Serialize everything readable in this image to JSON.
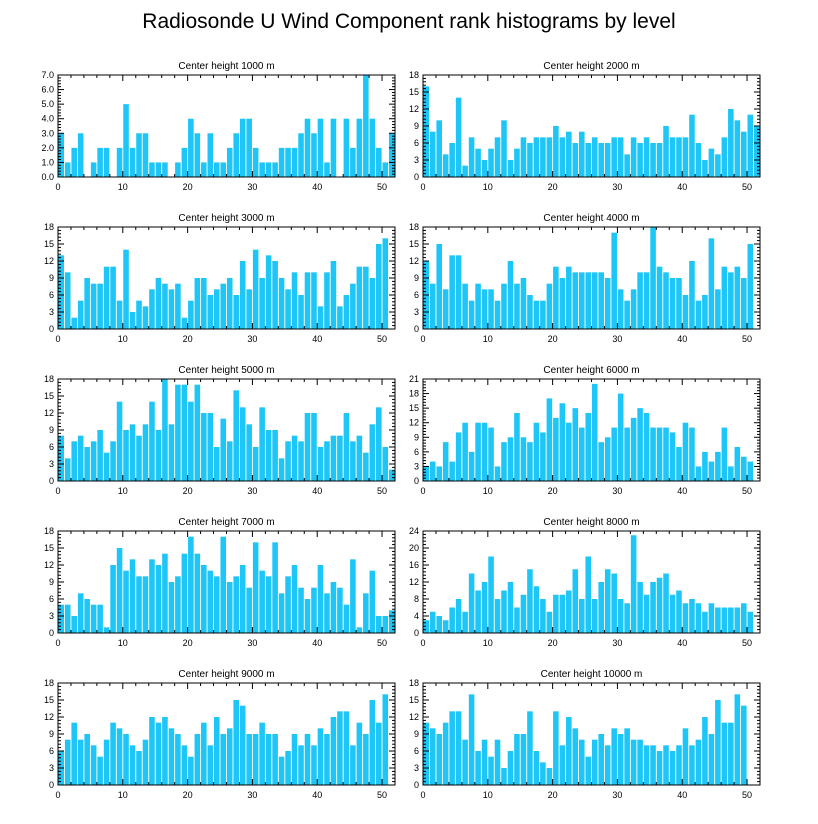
{
  "title": "Radiosonde U Wind Component rank histograms by level",
  "colors": {
    "bar": "#1ec6f7",
    "axis": "#000000",
    "background": "#ffffff"
  },
  "chart_data": [
    {
      "type": "bar",
      "title": "Center height 1000 m",
      "x": [
        0,
        1,
        2,
        3,
        4,
        5,
        6,
        7,
        8,
        9,
        10,
        11,
        12,
        13,
        14,
        15,
        16,
        17,
        18,
        19,
        20,
        21,
        22,
        23,
        24,
        25,
        26,
        27,
        28,
        29,
        30,
        31,
        32,
        33,
        34,
        35,
        36,
        37,
        38,
        39,
        40,
        41,
        42,
        43,
        44,
        45,
        46,
        47,
        48,
        49,
        50,
        51
      ],
      "values": [
        3,
        1,
        2,
        3,
        0,
        1,
        2,
        2,
        0,
        2,
        5,
        2,
        3,
        3,
        1,
        1,
        1,
        0,
        1,
        2,
        4,
        3,
        1,
        3,
        1,
        1,
        2,
        3,
        4,
        4,
        2,
        1,
        1,
        1,
        2,
        2,
        2,
        3,
        4,
        3,
        4,
        1,
        4,
        0,
        4,
        2,
        4,
        7,
        4,
        2,
        1,
        3
      ],
      "xlim": [
        0,
        52
      ],
      "ylim": [
        0,
        7
      ],
      "xticks": [
        0,
        10,
        20,
        30,
        40,
        50
      ],
      "yticks": [
        0,
        1,
        2,
        3,
        4,
        5,
        6,
        7
      ],
      "ytick_labels": [
        "0.0",
        "1.0",
        "2.0",
        "3.0",
        "4.0",
        "5.0",
        "6.0",
        "7.0"
      ]
    },
    {
      "type": "bar",
      "title": "Center height 2000 m",
      "x": [
        0,
        1,
        2,
        3,
        4,
        5,
        6,
        7,
        8,
        9,
        10,
        11,
        12,
        13,
        14,
        15,
        16,
        17,
        18,
        19,
        20,
        21,
        22,
        23,
        24,
        25,
        26,
        27,
        28,
        29,
        30,
        31,
        32,
        33,
        34,
        35,
        36,
        37,
        38,
        39,
        40,
        41,
        42,
        43,
        44,
        45,
        46,
        47,
        48,
        49,
        50,
        51
      ],
      "values": [
        16,
        8,
        10,
        4,
        6,
        14,
        2,
        7,
        5,
        3,
        5,
        7,
        10,
        3,
        5,
        7,
        6,
        7,
        7,
        7,
        9,
        7,
        8,
        6,
        8,
        6,
        7,
        6,
        6,
        7,
        7,
        4,
        7,
        6,
        7,
        6,
        6,
        9,
        7,
        7,
        7,
        11,
        6,
        3,
        5,
        4,
        7,
        12,
        10,
        8,
        11,
        9
      ],
      "xlim": [
        0,
        52
      ],
      "ylim": [
        0,
        18
      ],
      "xticks": [
        0,
        10,
        20,
        30,
        40,
        50
      ],
      "yticks": [
        0,
        3,
        6,
        9,
        12,
        15,
        18
      ],
      "ytick_labels": [
        "0",
        "3",
        "6",
        "9",
        "12",
        "15",
        "18"
      ]
    },
    {
      "type": "bar",
      "title": "Center height 3000 m",
      "x": [
        0,
        1,
        2,
        3,
        4,
        5,
        6,
        7,
        8,
        9,
        10,
        11,
        12,
        13,
        14,
        15,
        16,
        17,
        18,
        19,
        20,
        21,
        22,
        23,
        24,
        25,
        26,
        27,
        28,
        29,
        30,
        31,
        32,
        33,
        34,
        35,
        36,
        37,
        38,
        39,
        40,
        41,
        42,
        43,
        44,
        45,
        46,
        47,
        48,
        49,
        50,
        51
      ],
      "values": [
        13,
        10,
        2,
        5,
        9,
        8,
        8,
        11,
        11,
        5,
        14,
        3,
        5,
        4,
        7,
        9,
        8,
        7,
        8,
        2,
        5,
        9,
        9,
        6,
        7,
        8,
        9,
        6,
        12,
        7,
        14,
        9,
        13,
        12,
        9,
        7,
        10,
        6,
        10,
        10,
        4,
        10,
        12,
        4,
        6,
        8,
        11,
        11,
        9,
        15,
        16,
        0
      ],
      "xlim": [
        0,
        52
      ],
      "ylim": [
        0,
        18
      ],
      "xticks": [
        0,
        10,
        20,
        30,
        40,
        50
      ],
      "yticks": [
        0,
        3,
        6,
        9,
        12,
        15,
        18
      ],
      "ytick_labels": [
        "0",
        "3",
        "6",
        "9",
        "12",
        "15",
        "18"
      ]
    },
    {
      "type": "bar",
      "title": "Center height 4000 m",
      "x": [
        0,
        1,
        2,
        3,
        4,
        5,
        6,
        7,
        8,
        9,
        10,
        11,
        12,
        13,
        14,
        15,
        16,
        17,
        18,
        19,
        20,
        21,
        22,
        23,
        24,
        25,
        26,
        27,
        28,
        29,
        30,
        31,
        32,
        33,
        34,
        35,
        36,
        37,
        38,
        39,
        40,
        41,
        42,
        43,
        44,
        45,
        46,
        47,
        48,
        49,
        50,
        51
      ],
      "values": [
        12,
        8,
        15,
        7,
        13,
        13,
        8,
        5,
        8,
        7,
        7,
        5,
        8,
        12,
        8,
        9,
        6,
        5,
        5,
        8,
        11,
        9,
        11,
        10,
        10,
        10,
        10,
        10,
        9,
        17,
        7,
        5,
        7,
        10,
        10,
        18,
        11,
        10,
        9,
        9,
        6,
        12,
        5,
        6,
        16,
        7,
        11,
        10,
        11,
        9,
        15,
        0
      ],
      "xlim": [
        0,
        52
      ],
      "ylim": [
        0,
        18
      ],
      "xticks": [
        0,
        10,
        20,
        30,
        40,
        50
      ],
      "yticks": [
        0,
        3,
        6,
        9,
        12,
        15,
        18
      ],
      "ytick_labels": [
        "0",
        "3",
        "6",
        "9",
        "12",
        "15",
        "18"
      ]
    },
    {
      "type": "bar",
      "title": "Center height 5000 m",
      "x": [
        0,
        1,
        2,
        3,
        4,
        5,
        6,
        7,
        8,
        9,
        10,
        11,
        12,
        13,
        14,
        15,
        16,
        17,
        18,
        19,
        20,
        21,
        22,
        23,
        24,
        25,
        26,
        27,
        28,
        29,
        30,
        31,
        32,
        33,
        34,
        35,
        36,
        37,
        38,
        39,
        40,
        41,
        42,
        43,
        44,
        45,
        46,
        47,
        48,
        49,
        50,
        51
      ],
      "values": [
        8,
        4,
        7,
        8,
        6,
        7,
        9,
        5,
        7,
        14,
        9,
        10,
        8,
        10,
        14,
        9,
        18,
        10,
        17,
        17,
        14,
        17,
        12,
        12,
        6,
        11,
        7,
        16,
        13,
        10,
        6,
        13,
        9,
        9,
        4,
        7,
        8,
        7,
        12,
        12,
        6,
        7,
        8,
        8,
        12,
        7,
        8,
        5,
        10,
        13,
        6,
        2
      ],
      "xlim": [
        0,
        52
      ],
      "ylim": [
        0,
        18
      ],
      "xticks": [
        0,
        10,
        20,
        30,
        40,
        50
      ],
      "yticks": [
        0,
        3,
        6,
        9,
        12,
        15,
        18
      ],
      "ytick_labels": [
        "0",
        "3",
        "6",
        "9",
        "12",
        "15",
        "18"
      ]
    },
    {
      "type": "bar",
      "title": "Center height 6000 m",
      "x": [
        0,
        1,
        2,
        3,
        4,
        5,
        6,
        7,
        8,
        9,
        10,
        11,
        12,
        13,
        14,
        15,
        16,
        17,
        18,
        19,
        20,
        21,
        22,
        23,
        24,
        25,
        26,
        27,
        28,
        29,
        30,
        31,
        32,
        33,
        34,
        35,
        36,
        37,
        38,
        39,
        40,
        41,
        42,
        43,
        44,
        45,
        46,
        47,
        48,
        49,
        50,
        51
      ],
      "values": [
        3,
        4,
        3,
        8,
        4,
        10,
        12,
        6,
        12,
        12,
        11,
        3,
        8,
        9,
        14,
        9,
        8,
        12,
        10,
        17,
        13,
        16,
        12,
        15,
        11,
        14,
        20,
        8,
        9,
        11,
        18,
        11,
        13,
        15,
        14,
        11,
        11,
        11,
        10,
        7,
        12,
        11,
        3,
        6,
        4,
        6,
        11,
        3,
        7,
        5,
        4,
        0
      ],
      "xlim": [
        0,
        52
      ],
      "ylim": [
        0,
        21
      ],
      "xticks": [
        0,
        10,
        20,
        30,
        40,
        50
      ],
      "yticks": [
        0,
        3,
        6,
        9,
        12,
        15,
        18,
        21
      ],
      "ytick_labels": [
        "0",
        "3",
        "6",
        "9",
        "12",
        "15",
        "18",
        "21"
      ]
    },
    {
      "type": "bar",
      "title": "Center height 7000 m",
      "x": [
        0,
        1,
        2,
        3,
        4,
        5,
        6,
        7,
        8,
        9,
        10,
        11,
        12,
        13,
        14,
        15,
        16,
        17,
        18,
        19,
        20,
        21,
        22,
        23,
        24,
        25,
        26,
        27,
        28,
        29,
        30,
        31,
        32,
        33,
        34,
        35,
        36,
        37,
        38,
        39,
        40,
        41,
        42,
        43,
        44,
        45,
        46,
        47,
        48,
        49,
        50,
        51
      ],
      "values": [
        5,
        5,
        3,
        7,
        6,
        5,
        5,
        1,
        12,
        15,
        11,
        13,
        10,
        10,
        13,
        12,
        14,
        9,
        10,
        14,
        17,
        14,
        12,
        11,
        10,
        17,
        9,
        10,
        12,
        8,
        16,
        11,
        10,
        16,
        7,
        10,
        12,
        8,
        6,
        8,
        12,
        7,
        9,
        8,
        5,
        13,
        1,
        7,
        11,
        3,
        3,
        4
      ],
      "xlim": [
        0,
        52
      ],
      "ylim": [
        0,
        18
      ],
      "xticks": [
        0,
        10,
        20,
        30,
        40,
        50
      ],
      "yticks": [
        0,
        3,
        6,
        9,
        12,
        15,
        18
      ],
      "ytick_labels": [
        "0",
        "3",
        "6",
        "9",
        "12",
        "15",
        "18"
      ]
    },
    {
      "type": "bar",
      "title": "Center height 8000 m",
      "x": [
        0,
        1,
        2,
        3,
        4,
        5,
        6,
        7,
        8,
        9,
        10,
        11,
        12,
        13,
        14,
        15,
        16,
        17,
        18,
        19,
        20,
        21,
        22,
        23,
        24,
        25,
        26,
        27,
        28,
        29,
        30,
        31,
        32,
        33,
        34,
        35,
        36,
        37,
        38,
        39,
        40,
        41,
        42,
        43,
        44,
        45,
        46,
        47,
        48,
        49,
        50,
        51
      ],
      "values": [
        3,
        5,
        4,
        3,
        6,
        8,
        5,
        14,
        10,
        12,
        18,
        8,
        10,
        12,
        6,
        9,
        15,
        11,
        8,
        5,
        9,
        9,
        10,
        15,
        8,
        18,
        8,
        12,
        15,
        14,
        8,
        7,
        23,
        12,
        9,
        12,
        13,
        14,
        9,
        10,
        7,
        8,
        7,
        5,
        7,
        6,
        6,
        6,
        6,
        7,
        5,
        0
      ],
      "xlim": [
        0,
        52
      ],
      "ylim": [
        0,
        24
      ],
      "xticks": [
        0,
        10,
        20,
        30,
        40,
        50
      ],
      "yticks": [
        0,
        4,
        8,
        12,
        16,
        20,
        24
      ],
      "ytick_labels": [
        "0",
        "4",
        "8",
        "12",
        "16",
        "20",
        "24"
      ]
    },
    {
      "type": "bar",
      "title": "Center height 9000 m",
      "x": [
        0,
        1,
        2,
        3,
        4,
        5,
        6,
        7,
        8,
        9,
        10,
        11,
        12,
        13,
        14,
        15,
        16,
        17,
        18,
        19,
        20,
        21,
        22,
        23,
        24,
        25,
        26,
        27,
        28,
        29,
        30,
        31,
        32,
        33,
        34,
        35,
        36,
        37,
        38,
        39,
        40,
        41,
        42,
        43,
        44,
        45,
        46,
        47,
        48,
        49,
        50,
        51
      ],
      "values": [
        6,
        8,
        11,
        8,
        9,
        7,
        5,
        8,
        11,
        10,
        9,
        7,
        6,
        8,
        12,
        11,
        12,
        10,
        9,
        7,
        5,
        9,
        11,
        7,
        12,
        9,
        10,
        15,
        14,
        9,
        9,
        11,
        9,
        9,
        5,
        6,
        9,
        7,
        9,
        7,
        10,
        9,
        12,
        13,
        13,
        7,
        11,
        9,
        15,
        11,
        16,
        0
      ],
      "xlim": [
        0,
        52
      ],
      "ylim": [
        0,
        18
      ],
      "xticks": [
        0,
        10,
        20,
        30,
        40,
        50
      ],
      "yticks": [
        0,
        3,
        6,
        9,
        12,
        15,
        18
      ],
      "ytick_labels": [
        "0",
        "3",
        "6",
        "9",
        "12",
        "15",
        "18"
      ]
    },
    {
      "type": "bar",
      "title": "Center height 10000 m",
      "x": [
        0,
        1,
        2,
        3,
        4,
        5,
        6,
        7,
        8,
        9,
        10,
        11,
        12,
        13,
        14,
        15,
        16,
        17,
        18,
        19,
        20,
        21,
        22,
        23,
        24,
        25,
        26,
        27,
        28,
        29,
        30,
        31,
        32,
        33,
        34,
        35,
        36,
        37,
        38,
        39,
        40,
        41,
        42,
        43,
        44,
        45,
        46,
        47,
        48,
        49,
        50,
        51
      ],
      "values": [
        11,
        10,
        9,
        11,
        13,
        13,
        8,
        16,
        6,
        8,
        5,
        8,
        3,
        6,
        9,
        9,
        13,
        6,
        4,
        3,
        13,
        7,
        12,
        10,
        8,
        5,
        8,
        9,
        7,
        10,
        9,
        10,
        8,
        8,
        7,
        7,
        6,
        7,
        6,
        7,
        10,
        7,
        8,
        12,
        9,
        15,
        11,
        11,
        16,
        14,
        0,
        0
      ],
      "xlim": [
        0,
        52
      ],
      "ylim": [
        0,
        18
      ],
      "xticks": [
        0,
        10,
        20,
        30,
        40,
        50
      ],
      "yticks": [
        0,
        3,
        6,
        9,
        12,
        15,
        18
      ],
      "ytick_labels": [
        "0",
        "3",
        "6",
        "9",
        "12",
        "15",
        "18"
      ]
    }
  ]
}
